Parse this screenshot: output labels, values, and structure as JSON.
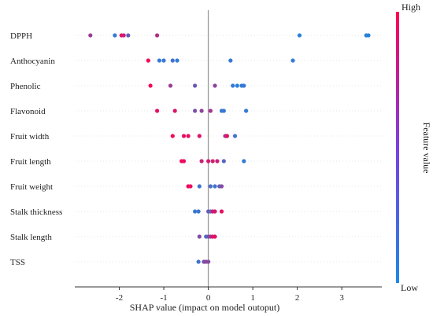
{
  "chart_data": {
    "type": "scatter",
    "subtype": "shap-beeswarm",
    "xlabel": "SHAP value (impact on model outoput)",
    "xlim": [
      -3.0,
      3.9
    ],
    "xticks": [
      -2,
      -1,
      0,
      1,
      2,
      3
    ],
    "grid": false,
    "colorbar": {
      "label": "Feature value",
      "high_label": "High",
      "low_label": "Low"
    },
    "colors": {
      "low": "#1e88e5",
      "high": "#ff0052",
      "zero_line": "#999999",
      "axis": "#333333"
    },
    "features": [
      {
        "name": "DPPH",
        "points": [
          {
            "x": -2.65,
            "c": 0.55
          },
          {
            "x": -2.1,
            "c": 0.1
          },
          {
            "x": -1.95,
            "c": 0.9
          },
          {
            "x": -1.9,
            "c": 0.75
          },
          {
            "x": -1.8,
            "c": 0.3
          },
          {
            "x": -1.15,
            "c": 0.65
          },
          {
            "x": 2.05,
            "c": 0.05
          },
          {
            "x": 3.55,
            "c": 0.05
          },
          {
            "x": 3.6,
            "c": 0.05
          }
        ]
      },
      {
        "name": "Anthocyanin",
        "points": [
          {
            "x": -1.35,
            "c": 0.95
          },
          {
            "x": -1.1,
            "c": 0.1
          },
          {
            "x": -1.0,
            "c": 0.1
          },
          {
            "x": -0.8,
            "c": 0.15
          },
          {
            "x": -0.7,
            "c": 0.1
          },
          {
            "x": 0.5,
            "c": 0.1
          },
          {
            "x": 1.9,
            "c": 0.1
          }
        ]
      },
      {
        "name": "Phenolic",
        "points": [
          {
            "x": -1.3,
            "c": 0.95
          },
          {
            "x": -0.85,
            "c": 0.55
          },
          {
            "x": -0.3,
            "c": 0.35
          },
          {
            "x": 0.15,
            "c": 0.5
          },
          {
            "x": 0.55,
            "c": 0.1
          },
          {
            "x": 0.65,
            "c": 0.05
          },
          {
            "x": 0.75,
            "c": 0.1
          },
          {
            "x": 0.8,
            "c": 0.1
          }
        ]
      },
      {
        "name": "Flavonoid",
        "points": [
          {
            "x": -1.15,
            "c": 0.9
          },
          {
            "x": -0.75,
            "c": 0.85
          },
          {
            "x": -0.3,
            "c": 0.4
          },
          {
            "x": -0.15,
            "c": 0.5
          },
          {
            "x": 0.05,
            "c": 0.6
          },
          {
            "x": 0.3,
            "c": 0.15
          },
          {
            "x": 0.35,
            "c": 0.1
          },
          {
            "x": 0.85,
            "c": 0.1
          }
        ]
      },
      {
        "name": "Fruit width",
        "points": [
          {
            "x": -0.8,
            "c": 0.95
          },
          {
            "x": -0.55,
            "c": 0.9
          },
          {
            "x": -0.45,
            "c": 0.9
          },
          {
            "x": -0.2,
            "c": 0.85
          },
          {
            "x": 0.38,
            "c": 0.55
          },
          {
            "x": 0.42,
            "c": 0.3
          },
          {
            "x": 0.42,
            "c": 0.9
          },
          {
            "x": 0.6,
            "c": 0.15
          }
        ]
      },
      {
        "name": "Fruit length",
        "points": [
          {
            "x": -0.6,
            "c": 0.95
          },
          {
            "x": -0.55,
            "c": 0.9
          },
          {
            "x": -0.15,
            "c": 0.75
          },
          {
            "x": 0.0,
            "c": 0.8
          },
          {
            "x": 0.1,
            "c": 0.75
          },
          {
            "x": 0.2,
            "c": 0.8
          },
          {
            "x": 0.35,
            "c": 0.25
          },
          {
            "x": 0.8,
            "c": 0.1
          }
        ]
      },
      {
        "name": "Fruit weight",
        "points": [
          {
            "x": -0.45,
            "c": 0.95
          },
          {
            "x": -0.4,
            "c": 0.9
          },
          {
            "x": -0.2,
            "c": 0.15
          },
          {
            "x": 0.05,
            "c": 0.2
          },
          {
            "x": 0.15,
            "c": 0.15
          },
          {
            "x": 0.25,
            "c": 0.3
          },
          {
            "x": 0.3,
            "c": 0.45
          }
        ]
      },
      {
        "name": "Stalk thickness",
        "points": [
          {
            "x": -0.3,
            "c": 0.1
          },
          {
            "x": -0.22,
            "c": 0.15
          },
          {
            "x": 0.0,
            "c": 0.35
          },
          {
            "x": 0.05,
            "c": 0.2
          },
          {
            "x": 0.1,
            "c": 0.85
          },
          {
            "x": 0.15,
            "c": 0.8
          },
          {
            "x": 0.3,
            "c": 0.9
          }
        ]
      },
      {
        "name": "Stalk length",
        "points": [
          {
            "x": -0.2,
            "c": 0.45
          },
          {
            "x": -0.05,
            "c": 0.2
          },
          {
            "x": 0.0,
            "c": 0.35
          },
          {
            "x": 0.05,
            "c": 0.6
          },
          {
            "x": 0.1,
            "c": 0.85
          },
          {
            "x": 0.15,
            "c": 0.85
          }
        ]
      },
      {
        "name": "TSS",
        "points": [
          {
            "x": -0.22,
            "c": 0.15
          },
          {
            "x": -0.1,
            "c": 0.4
          },
          {
            "x": -0.05,
            "c": 0.5
          },
          {
            "x": 0.0,
            "c": 0.45
          }
        ]
      }
    ]
  }
}
